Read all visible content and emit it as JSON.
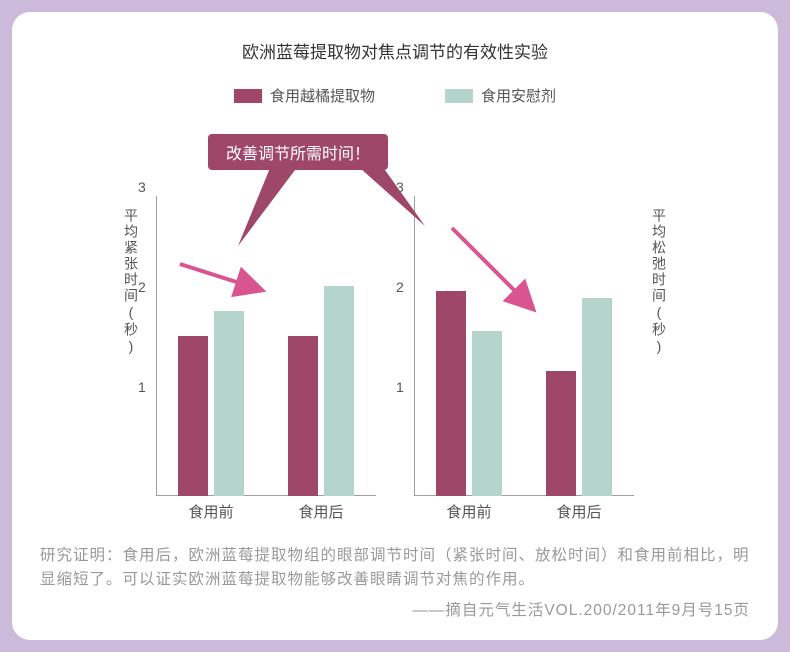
{
  "colors": {
    "outer_bg": "#cbbad9",
    "card_bg": "#ffffff",
    "series_a": "#9e4769",
    "series_b": "#b5d4cb",
    "callout_bg": "#9e4769",
    "arrow_color": "#d95590",
    "text_main": "#555555",
    "text_muted": "#999999"
  },
  "title": "欧洲蓝莓提取物对焦点调节的有效性实验",
  "legend": {
    "a": "食用越橘提取物",
    "b": "食用安慰剂"
  },
  "y_axis": {
    "min": 0,
    "max": 3,
    "ticks": [
      1,
      2,
      3
    ]
  },
  "left_chart": {
    "ylabel": "平均紧张时间(秒)",
    "categories": [
      "食用前",
      "食用后"
    ],
    "series_a": [
      1.6,
      1.6
    ],
    "series_b": [
      1.85,
      2.1
    ]
  },
  "right_chart": {
    "ylabel": "平均松弛时间(秒)",
    "categories": [
      "食用前",
      "食用后"
    ],
    "series_a": [
      2.05,
      1.25
    ],
    "series_b": [
      1.65,
      1.98
    ]
  },
  "callout": "改善调节所需时间！",
  "body_text": "研究证明：食用后，欧洲蓝莓提取物组的眼部调节时间（紧张时间、放松时间）和食用前相比，明显缩短了。可以证实欧洲蓝莓提取物能够改善眼睛调节对焦的作用。",
  "citation": "——摘自元气生活VOL.200/2011年9月号15页"
}
